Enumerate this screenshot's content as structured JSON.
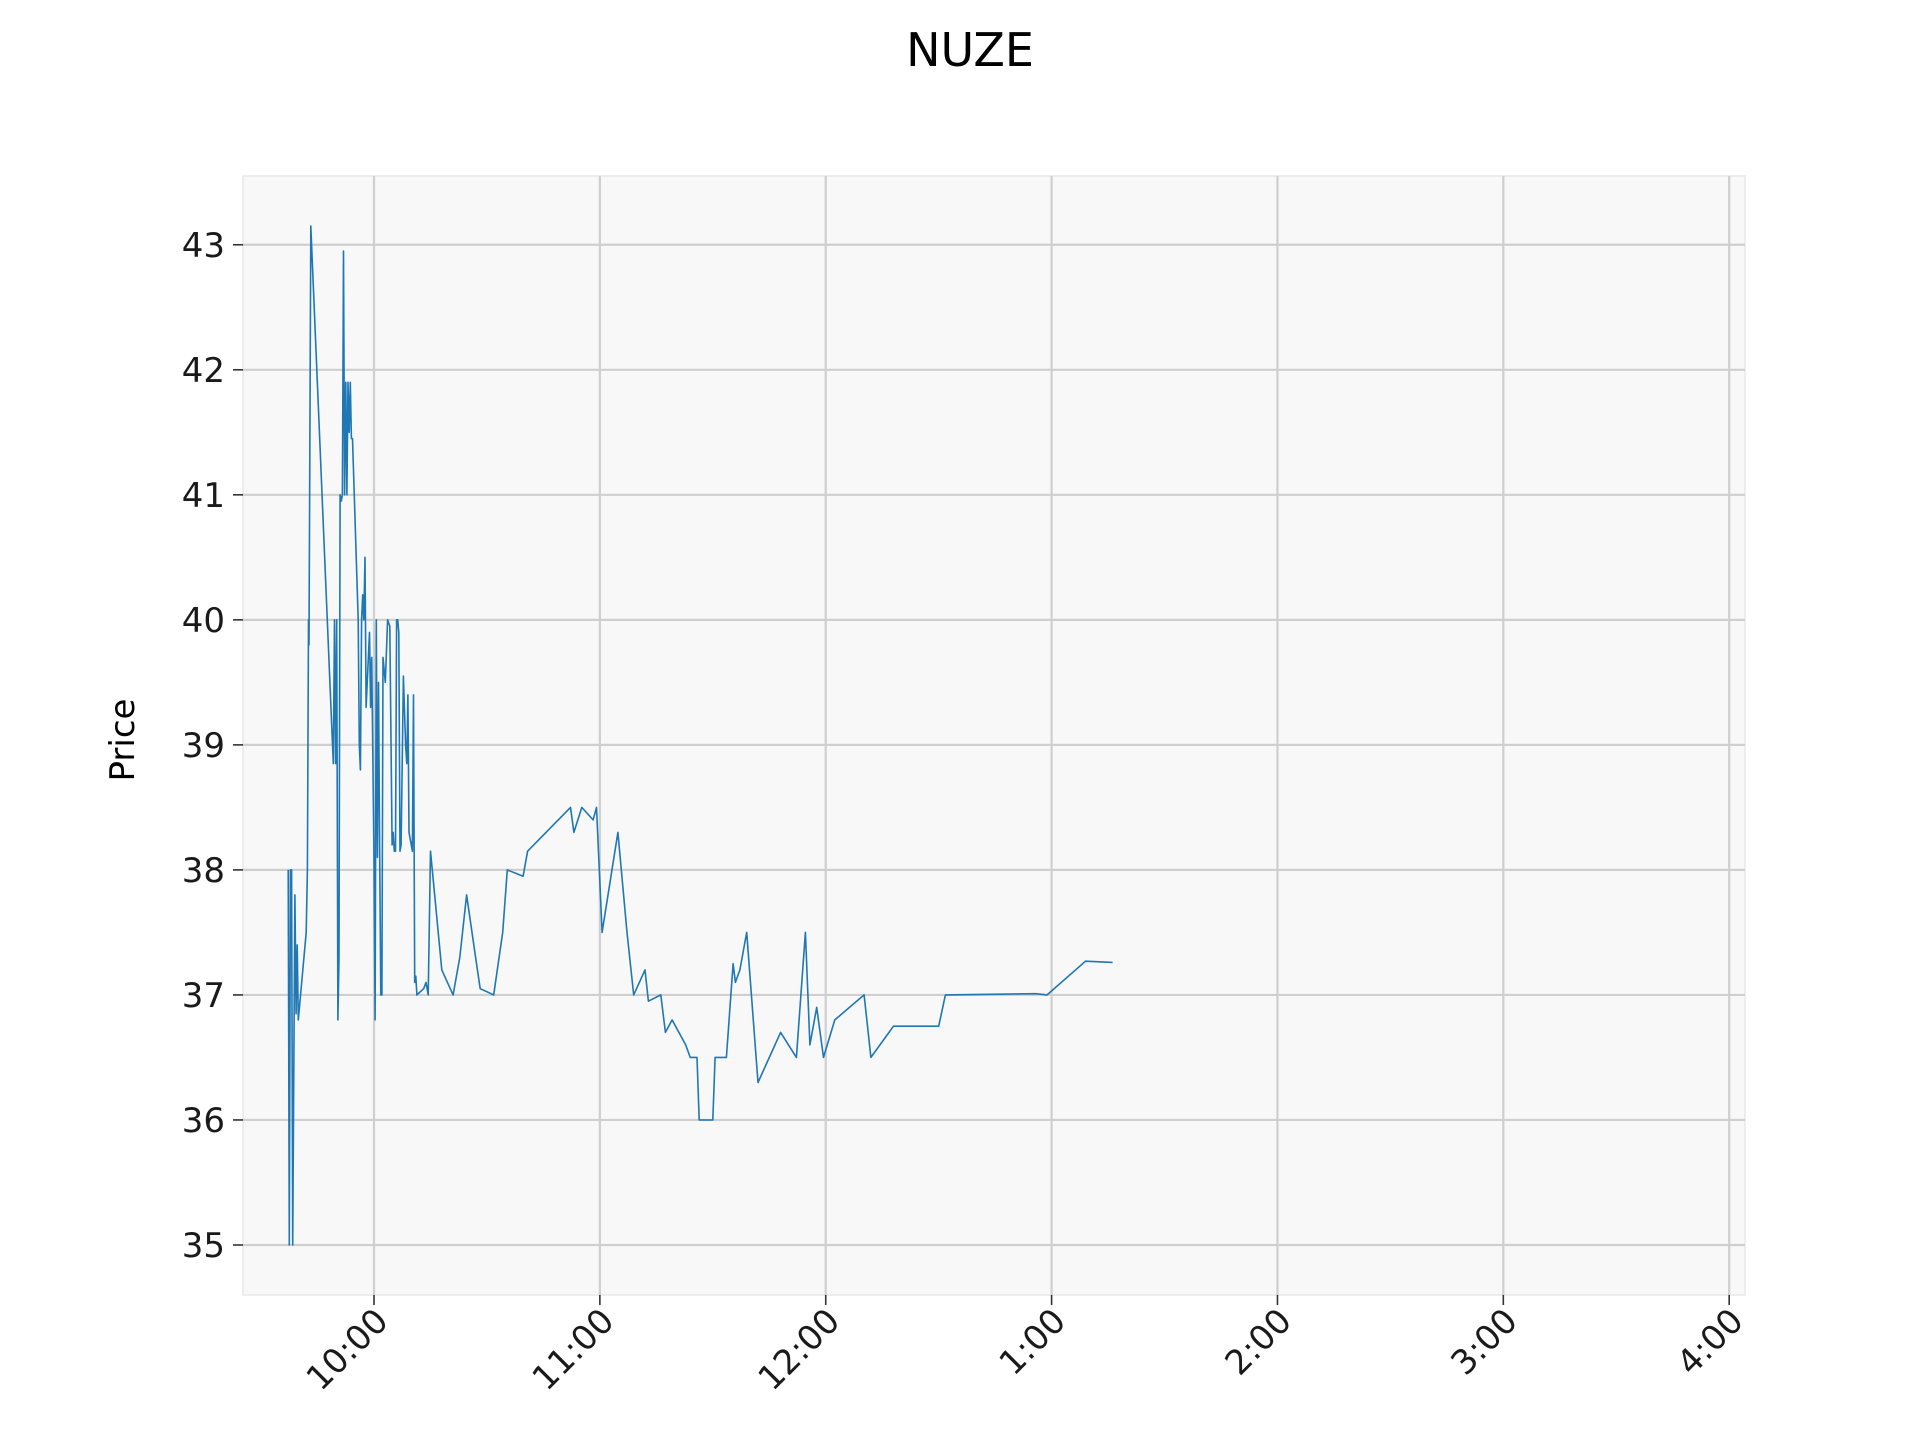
{
  "chart_data": {
    "type": "line",
    "title": "NUZE",
    "xlabel": "",
    "ylabel": "Price",
    "grid": true,
    "legend": "none",
    "x_ticks": [
      "10:00",
      "11:00",
      "12:00",
      "1:00",
      "2:00",
      "3:00",
      "4:00"
    ],
    "y_ticks": [
      "35",
      "36",
      "37",
      "38",
      "39",
      "40",
      "41",
      "42",
      "43"
    ],
    "x_domain_hours": [
      9.42,
      16.07
    ],
    "ylim": [
      34.6,
      43.55
    ],
    "series": [
      {
        "color": "#1f77b4",
        "points": [
          [
            9.62,
            38.0
          ],
          [
            9.625,
            35.0
          ],
          [
            9.63,
            38.0
          ],
          [
            9.635,
            38.0
          ],
          [
            9.64,
            35.0
          ],
          [
            9.65,
            37.8
          ],
          [
            9.655,
            36.85
          ],
          [
            9.66,
            37.4
          ],
          [
            9.665,
            36.8
          ],
          [
            9.7,
            37.5
          ],
          [
            9.705,
            38.0
          ],
          [
            9.71,
            40.0
          ],
          [
            9.712,
            39.8
          ],
          [
            9.72,
            43.15
          ],
          [
            9.82,
            38.85
          ],
          [
            9.825,
            40.0
          ],
          [
            9.83,
            38.85
          ],
          [
            9.835,
            40.0
          ],
          [
            9.84,
            36.8
          ],
          [
            9.845,
            37.3
          ],
          [
            9.85,
            41.0
          ],
          [
            9.855,
            40.95
          ],
          [
            9.86,
            41.0
          ],
          [
            9.865,
            42.95
          ],
          [
            9.87,
            41.0
          ],
          [
            9.875,
            41.9
          ],
          [
            9.88,
            41.0
          ],
          [
            9.885,
            41.9
          ],
          [
            9.89,
            41.5
          ],
          [
            9.895,
            41.9
          ],
          [
            9.9,
            41.45
          ],
          [
            9.905,
            41.45
          ],
          [
            9.93,
            40.0
          ],
          [
            9.935,
            39.0
          ],
          [
            9.94,
            38.8
          ],
          [
            9.945,
            40.0
          ],
          [
            9.95,
            40.2
          ],
          [
            9.955,
            40.0
          ],
          [
            9.96,
            40.5
          ],
          [
            9.965,
            39.3
          ],
          [
            9.98,
            39.9
          ],
          [
            9.985,
            39.3
          ],
          [
            9.99,
            39.7
          ],
          [
            10.0,
            38.1
          ],
          [
            10.005,
            36.8
          ],
          [
            10.01,
            40.0
          ],
          [
            10.015,
            38.1
          ],
          [
            10.02,
            39.5
          ],
          [
            10.025,
            38.2
          ],
          [
            10.03,
            37.0
          ],
          [
            10.035,
            37.0
          ],
          [
            10.04,
            39.7
          ],
          [
            10.05,
            39.5
          ],
          [
            10.06,
            40.0
          ],
          [
            10.07,
            39.95
          ],
          [
            10.08,
            38.2
          ],
          [
            10.085,
            38.3
          ],
          [
            10.09,
            38.15
          ],
          [
            10.095,
            38.15
          ],
          [
            10.1,
            40.0
          ],
          [
            10.105,
            40.0
          ],
          [
            10.11,
            39.9
          ],
          [
            10.115,
            38.15
          ],
          [
            10.12,
            38.2
          ],
          [
            10.13,
            39.55
          ],
          [
            10.14,
            39.0
          ],
          [
            10.145,
            38.85
          ],
          [
            10.15,
            39.4
          ],
          [
            10.155,
            38.3
          ],
          [
            10.17,
            38.15
          ],
          [
            10.175,
            39.4
          ],
          [
            10.18,
            37.1
          ],
          [
            10.185,
            37.15
          ],
          [
            10.19,
            37.0
          ],
          [
            10.22,
            37.05
          ],
          [
            10.23,
            37.1
          ],
          [
            10.24,
            37.0
          ],
          [
            10.25,
            38.15
          ],
          [
            10.3,
            37.2
          ],
          [
            10.35,
            37.0
          ],
          [
            10.38,
            37.3
          ],
          [
            10.41,
            37.8
          ],
          [
            10.45,
            37.3
          ],
          [
            10.47,
            37.05
          ],
          [
            10.53,
            37.0
          ],
          [
            10.57,
            37.5
          ],
          [
            10.59,
            38.0
          ],
          [
            10.66,
            37.95
          ],
          [
            10.68,
            38.15
          ],
          [
            10.87,
            38.5
          ],
          [
            10.885,
            38.3
          ],
          [
            10.92,
            38.5
          ],
          [
            10.97,
            38.4
          ],
          [
            10.985,
            38.5
          ],
          [
            11.01,
            37.5
          ],
          [
            11.08,
            38.3
          ],
          [
            11.12,
            37.5
          ],
          [
            11.15,
            37.0
          ],
          [
            11.2,
            37.2
          ],
          [
            11.215,
            36.95
          ],
          [
            11.27,
            37.0
          ],
          [
            11.29,
            36.7
          ],
          [
            11.32,
            36.8
          ],
          [
            11.35,
            36.7
          ],
          [
            11.38,
            36.6
          ],
          [
            11.4,
            36.5
          ],
          [
            11.43,
            36.5
          ],
          [
            11.44,
            36.0
          ],
          [
            11.5,
            36.0
          ],
          [
            11.51,
            36.5
          ],
          [
            11.56,
            36.5
          ],
          [
            11.59,
            37.25
          ],
          [
            11.6,
            37.1
          ],
          [
            11.62,
            37.2
          ],
          [
            11.65,
            37.5
          ],
          [
            11.7,
            36.3
          ],
          [
            11.8,
            36.7
          ],
          [
            11.87,
            36.5
          ],
          [
            11.91,
            37.5
          ],
          [
            11.93,
            36.6
          ],
          [
            11.96,
            36.9
          ],
          [
            11.99,
            36.5
          ],
          [
            12.04,
            36.8
          ],
          [
            12.17,
            37.0
          ],
          [
            12.2,
            36.5
          ],
          [
            12.3,
            36.75
          ],
          [
            12.5,
            36.75
          ],
          [
            12.53,
            37.0
          ],
          [
            12.93,
            37.01
          ],
          [
            12.98,
            37.0
          ],
          [
            13.15,
            37.27
          ],
          [
            13.27,
            37.26
          ]
        ]
      }
    ]
  }
}
